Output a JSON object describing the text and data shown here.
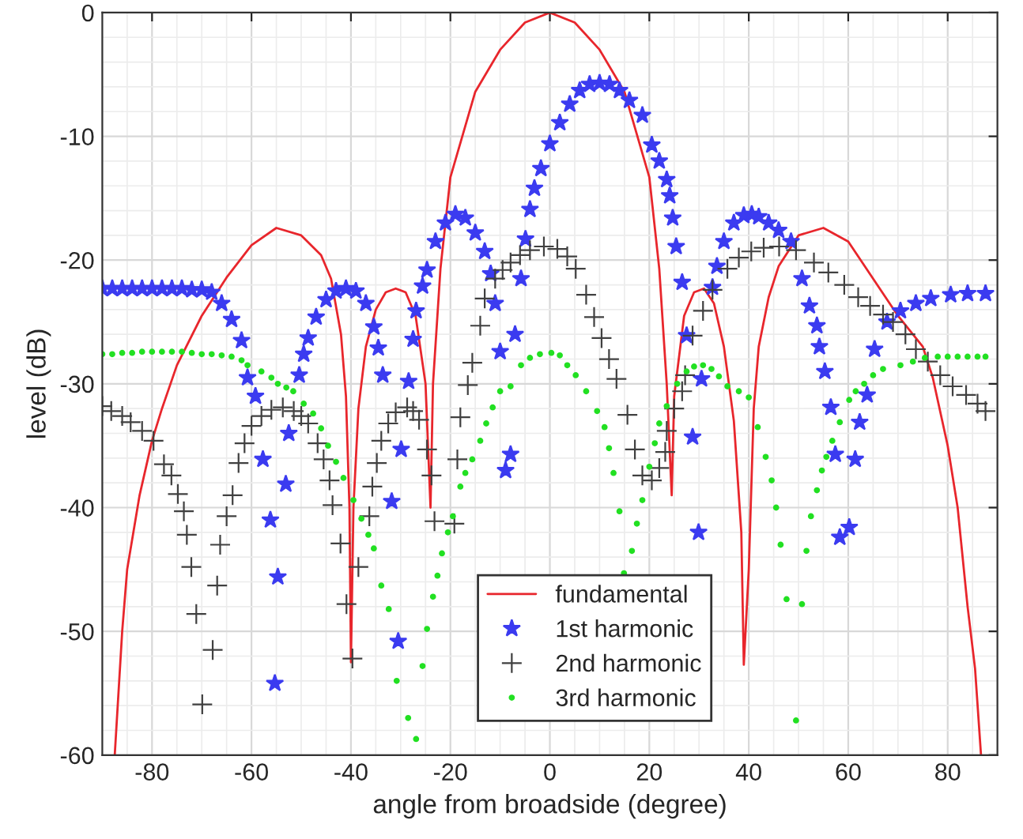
{
  "chart_data": {
    "type": "line",
    "xlabel": "angle from broadside (degree)",
    "ylabel": "level (dB)",
    "xlim": [
      -90,
      90
    ],
    "ylim": [
      -60,
      0
    ],
    "xticks": [
      -80,
      -60,
      -40,
      -20,
      0,
      20,
      40,
      60,
      80
    ],
    "yticks": [
      -60,
      -50,
      -40,
      -30,
      -20,
      -10,
      0
    ],
    "grid": true,
    "legend": "bottom",
    "series": [
      {
        "name": "fundamental",
        "color": "#e8262c",
        "marker": "none",
        "line_style": "solid",
        "x": [
          -87.5,
          -86,
          -85,
          -82.5,
          -80,
          -78,
          -75,
          -70,
          -65,
          -60,
          -55,
          -50,
          -46,
          -44,
          -42,
          -41,
          -40.3,
          -40,
          -39.5,
          -38.5,
          -37,
          -35,
          -33,
          -31,
          -29,
          -27,
          -25,
          -24,
          -23.5,
          -22,
          -20,
          -15,
          -10,
          -5,
          0,
          5,
          10,
          15,
          20,
          22,
          23.5,
          24.5,
          25,
          27,
          29,
          31,
          33,
          35,
          37,
          38.5,
          39,
          40,
          41,
          42,
          44,
          46,
          50,
          55,
          60,
          65,
          70,
          75,
          77,
          80,
          82,
          84,
          85.5,
          86.7
        ],
        "values": [
          -60,
          -50,
          -45,
          -39,
          -34.6,
          -32,
          -28.5,
          -24.5,
          -21.4,
          -18.8,
          -17.4,
          -18,
          -19.6,
          -21.5,
          -26,
          -31,
          -40,
          -52.5,
          -40,
          -32,
          -27,
          -24,
          -22.6,
          -22.3,
          -22.6,
          -24.5,
          -30,
          -40,
          -30,
          -20.7,
          -13.3,
          -6.4,
          -3,
          -0.8,
          0,
          -0.8,
          -3,
          -6.4,
          -13.3,
          -20.7,
          -30,
          -39,
          -31,
          -24.5,
          -22.6,
          -22.3,
          -23.5,
          -27,
          -33,
          -42,
          -52.7,
          -45,
          -32,
          -27,
          -23,
          -20.5,
          -18,
          -17.4,
          -18.5,
          -21.5,
          -24.5,
          -27,
          -29.5,
          -35,
          -40,
          -48,
          -53,
          -60
        ]
      },
      {
        "name": "1st harmonic",
        "type": "scatter",
        "color": "#3b3bf0",
        "marker": "star",
        "x": [
          -90,
          -88,
          -86,
          -84,
          -82,
          -80,
          -78,
          -76,
          -74,
          -72,
          -70,
          -68,
          -66,
          -64,
          -62,
          -60.8,
          -59.2,
          -57.7,
          -56.2,
          -55.3,
          -54.7,
          -53.1,
          -52.5,
          -50.4,
          -49.5,
          -48.6,
          -47,
          -45,
          -43,
          -41,
          -39,
          -37,
          -35.4,
          -34.5,
          -33.6,
          -31.8,
          -30.5,
          -29.9,
          -28.4,
          -27.5,
          -26.9,
          -25.6,
          -24.7,
          -23,
          -21,
          -19,
          -17,
          -15,
          -13.1,
          -11.9,
          -11,
          -10,
          -8.9,
          -7.9,
          -7,
          -5.8,
          -4.9,
          -4,
          -3.1,
          -1.8,
          0,
          2,
          4,
          6,
          8,
          10,
          12,
          14,
          16,
          18.6,
          20.5,
          22,
          23.5,
          24.1,
          24.7,
          25.4,
          26.6,
          27.5,
          28.7,
          29.9,
          30.5,
          32.7,
          33.6,
          35,
          37,
          39,
          40.6,
          42,
          44,
          46,
          48.5,
          50.7,
          52.2,
          53.7,
          54.2,
          55.3,
          56.5,
          57.4,
          58.3,
          60.2,
          61.4,
          62.3,
          63.8,
          65.3,
          67.8,
          70.5,
          73.6,
          76.6,
          80.6,
          84,
          87.6
        ],
        "values": [
          -22.3,
          -22.3,
          -22.3,
          -22.3,
          -22.3,
          -22.3,
          -22.3,
          -22.3,
          -22.3,
          -22.4,
          -22.4,
          -22.6,
          -23.5,
          -24.8,
          -26.5,
          -29.5,
          -31,
          -36.1,
          -41,
          -54.2,
          -45.6,
          -38.1,
          -34,
          -29.3,
          -27.6,
          -26.3,
          -24.6,
          -23.2,
          -22.5,
          -22.3,
          -22.5,
          -23.5,
          -25.4,
          -27.1,
          -29.3,
          -39.5,
          -50.8,
          -35.3,
          -29.8,
          -26.4,
          -24.1,
          -22.1,
          -20.8,
          -18.5,
          -17,
          -16.3,
          -16.6,
          -17.8,
          -19.3,
          -21.1,
          -23.5,
          -27.4,
          -37,
          -35.7,
          -26,
          -21.5,
          -18.3,
          -15.9,
          -14.2,
          -12.6,
          -10.6,
          -8.9,
          -7.4,
          -6.3,
          -5.8,
          -5.7,
          -5.8,
          -6.3,
          -7.1,
          -8.3,
          -10.7,
          -12,
          -13.5,
          -14.8,
          -16.6,
          -18.9,
          -21.8,
          -26.1,
          -34.3,
          -42,
          -29.6,
          -22.2,
          -20.5,
          -18.5,
          -17,
          -16.4,
          -16.3,
          -16.5,
          -17,
          -17.6,
          -18.5,
          -21.5,
          -23.7,
          -25.3,
          -27,
          -29,
          -31.9,
          -35.7,
          -42.4,
          -41.6,
          -36.1,
          -33.1,
          -30.9,
          -27.2,
          -25,
          -24.1,
          -23.5,
          -23.1,
          -22.8,
          -22.7,
          -22.7
        ]
      },
      {
        "name": "2nd harmonic",
        "type": "scatter",
        "color": "#404040",
        "marker": "cross",
        "x": [
          -90,
          -88.2,
          -86,
          -84.3,
          -82,
          -79.7,
          -77.6,
          -76.1,
          -74.8,
          -73.6,
          -73,
          -72.1,
          -71.1,
          -69.9,
          -67.8,
          -66.9,
          -66.3,
          -65,
          -63.8,
          -62.6,
          -61.4,
          -60,
          -58,
          -56,
          -53.7,
          -51.5,
          -50,
          -48.6,
          -46.7,
          -45.5,
          -44.3,
          -43.7,
          -42.1,
          -40.9,
          -39.7,
          -38.5,
          -36.3,
          -35.7,
          -34.8,
          -33.9,
          -32.5,
          -31,
          -28.7,
          -27.5,
          -26.3,
          -24.7,
          -23.8,
          -23.2,
          -19.2,
          -18.6,
          -18,
          -16.5,
          -15.6,
          -14,
          -13.1,
          -11,
          -9.5,
          -7.9,
          -6,
          -4,
          -1.2,
          1.5,
          3.5,
          5.2,
          7.3,
          8.9,
          10.4,
          11.9,
          13.4,
          15.6,
          17.1,
          18.6,
          20.5,
          22,
          23.2,
          23.5,
          25,
          26.6,
          27.2,
          28.7,
          30.8,
          32.7,
          35.7,
          38,
          40.5,
          43,
          46.1,
          49.5,
          53.1,
          56,
          59.2,
          62,
          64.4,
          67,
          69,
          71.5,
          73.6,
          76,
          78.5,
          81,
          83.7,
          86,
          87.6
        ],
        "values": [
          -31.8,
          -32.2,
          -32.6,
          -33.1,
          -33.8,
          -34.6,
          -36.5,
          -37.4,
          -38.9,
          -40.3,
          -42.2,
          -44.8,
          -48.6,
          -55.9,
          -51.5,
          -46.3,
          -43,
          -40.7,
          -39,
          -36.4,
          -34.8,
          -33.4,
          -32.6,
          -32.1,
          -31.9,
          -32.2,
          -32.6,
          -33.2,
          -34.8,
          -36.1,
          -37.8,
          -39.8,
          -42.9,
          -47.8,
          -52.2,
          -44.8,
          -40.7,
          -38.3,
          -36.4,
          -34.6,
          -33.2,
          -32.3,
          -31.9,
          -32.2,
          -32.9,
          -35.3,
          -37.4,
          -41.1,
          -41.3,
          -36.1,
          -32.7,
          -30.1,
          -28.3,
          -25.3,
          -23.1,
          -21.5,
          -20.8,
          -20.2,
          -19.6,
          -19.2,
          -18.9,
          -19.1,
          -19.7,
          -20.7,
          -22.8,
          -24.6,
          -26.3,
          -28,
          -29.6,
          -32.5,
          -35.3,
          -37.4,
          -37.8,
          -36.8,
          -35.5,
          -33.8,
          -32,
          -30.6,
          -29.3,
          -26.1,
          -24.1,
          -22.4,
          -20.7,
          -19.8,
          -19.3,
          -19,
          -18.9,
          -19.2,
          -20.2,
          -21,
          -22,
          -23,
          -23.7,
          -24.4,
          -25,
          -26,
          -27.2,
          -28.2,
          -29.3,
          -30.2,
          -30.9,
          -31.6,
          -32.2
        ]
      },
      {
        "name": "3rd harmonic",
        "type": "scatter",
        "color": "#22e022",
        "marker": "circle",
        "x": [
          -90,
          -88,
          -86,
          -84,
          -82,
          -80,
          -78,
          -76,
          -74,
          -72,
          -70,
          -68,
          -66,
          -64,
          -62,
          -60.8,
          -58,
          -56,
          -54.7,
          -53,
          -51.6,
          -49.5,
          -47.6,
          -46,
          -44.6,
          -43,
          -41.5,
          -39.5,
          -37.9,
          -36.5,
          -35.4,
          -33.9,
          -32.4,
          -30.8,
          -28.5,
          -26.9,
          -25.6,
          -24.7,
          -23.5,
          -22.6,
          -21.7,
          -20.5,
          -19.5,
          -18,
          -17,
          -15.6,
          -14,
          -12.8,
          -11.5,
          -10,
          -7.9,
          -5.8,
          -4,
          -2,
          0.3,
          2,
          3.5,
          5.2,
          7.3,
          9.5,
          11,
          11.9,
          12.8,
          14,
          14.9,
          16.5,
          17.5,
          18.6,
          20,
          21.1,
          22,
          23.5,
          25.6,
          27.5,
          29,
          30.8,
          32.5,
          34,
          35.7,
          38,
          40,
          41.8,
          43.4,
          44.6,
          45.5,
          46.4,
          47.6,
          49.5,
          50.7,
          51.6,
          52.5,
          53.7,
          54.7,
          55.6,
          56.8,
          58.3,
          60.2,
          61.5,
          63.2,
          65,
          67,
          70.5,
          73,
          75.4,
          78,
          80,
          82,
          84,
          86,
          87.6
        ],
        "values": [
          -27.6,
          -27.6,
          -27.5,
          -27.5,
          -27.4,
          -27.4,
          -27.4,
          -27.4,
          -27.4,
          -27.5,
          -27.6,
          -27.6,
          -27.7,
          -27.8,
          -28.1,
          -28.5,
          -29,
          -29.5,
          -30,
          -30.3,
          -30.6,
          -31.6,
          -32.4,
          -33.6,
          -35,
          -36.3,
          -37.6,
          -39.4,
          -40.9,
          -42.2,
          -43.3,
          -46.3,
          -48.2,
          -54,
          -57,
          -58.7,
          -52.8,
          -49.8,
          -47.2,
          -45.5,
          -43.7,
          -42,
          -40.7,
          -38.3,
          -37.2,
          -36.1,
          -34.6,
          -33.2,
          -31.9,
          -30.6,
          -30.2,
          -28.5,
          -27.9,
          -27.6,
          -27.5,
          -27.7,
          -28.5,
          -29.3,
          -30.6,
          -32.2,
          -33.5,
          -35.2,
          -37.2,
          -40.3,
          -45.3,
          -43.5,
          -41.3,
          -39.4,
          -36.7,
          -34.8,
          -33.2,
          -31.8,
          -30,
          -29,
          -28.6,
          -28.5,
          -28.8,
          -29.4,
          -30.2,
          -30.6,
          -31.1,
          -33.5,
          -35.9,
          -37.8,
          -40,
          -43,
          -47.4,
          -57.2,
          -47.8,
          -43.5,
          -40.7,
          -38.6,
          -37,
          -35.9,
          -34.6,
          -33.1,
          -31.3,
          -30.6,
          -30,
          -29.3,
          -28.8,
          -28.5,
          -28.2,
          -27.9,
          -27.8,
          -27.8,
          -27.8,
          -27.8,
          -27.8,
          -27.8
        ]
      }
    ]
  }
}
